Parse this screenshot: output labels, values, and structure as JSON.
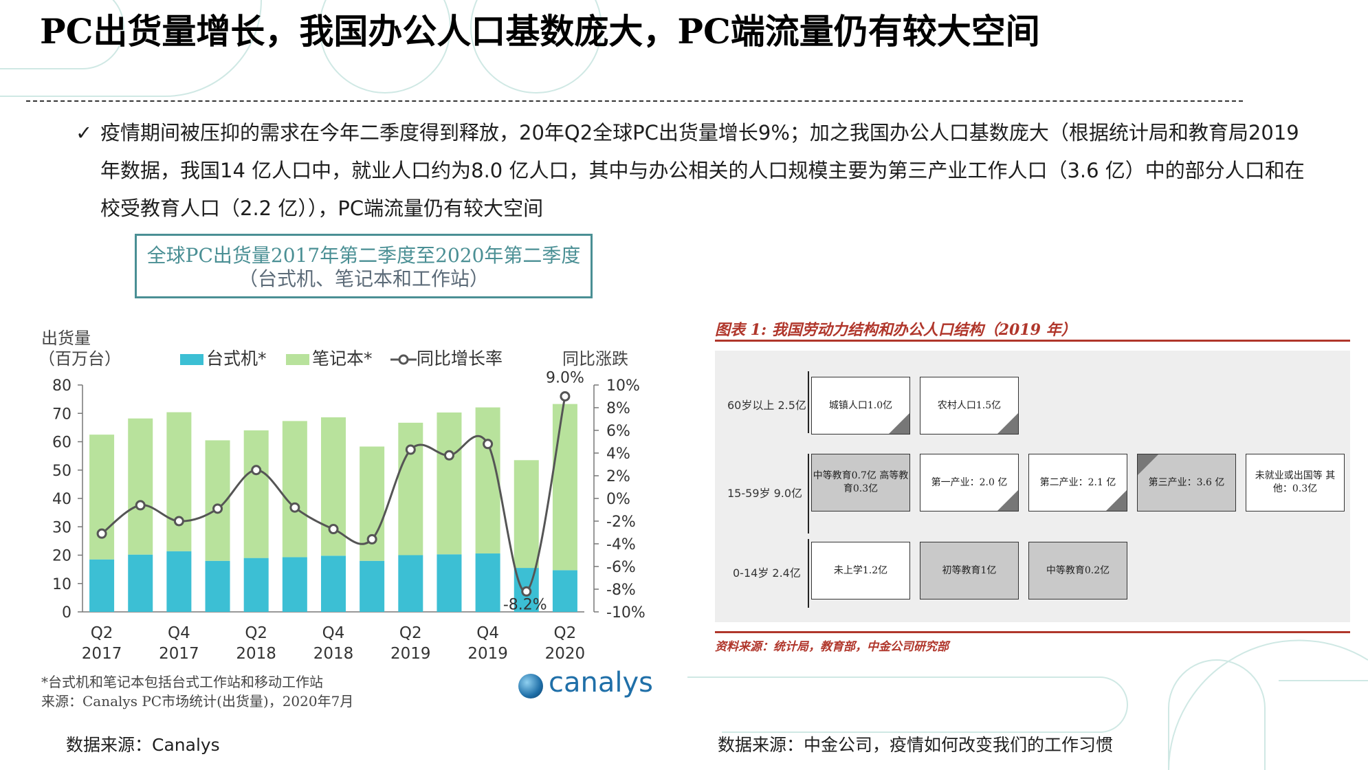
{
  "slide": {
    "title": "PC出货量增长，我国办公人口基数庞大，PC端流量仍有较大空间",
    "check_glyph": "✓",
    "bullet": "疫情期间被压抑的需求在今年二季度得到释放，20年Q2全球PC出货量增长9%；加之我国办公人口基数庞大（根据统计局和教育局2019 年数据，我国14 亿人口中，就业人口约为8.0 亿人口，其中与办公相关的人口规模主要为第三产业工作人口（3.6 亿）中的部分人口和在校受教育人口（2.2 亿）），PC端流量仍有较大空间",
    "left_source": "数据来源：Canalys",
    "right_source": "数据来源：中金公司，疫情如何改变我们的工作习惯"
  },
  "chart_data": {
    "type": "bar",
    "stacked": true,
    "title": "全球PC出货量2017年第二季度至2020年第二季度",
    "subtitle": "（台式机、笔记本和工作站）",
    "ylabel_line1": "出货量",
    "ylabel_line2": "（百万台）",
    "y2label": "同比涨跌",
    "ylim": [
      0,
      80
    ],
    "yticks": [
      "0",
      "10",
      "20",
      "30",
      "40",
      "50",
      "60",
      "70",
      "80"
    ],
    "y2lim": [
      -10,
      10
    ],
    "y2ticks": [
      "-10%",
      "-8%",
      "-6%",
      "-4%",
      "-2%",
      "0%",
      "2%",
      "4%",
      "6%",
      "8%",
      "10%"
    ],
    "categories": [
      "Q2 2017",
      "Q3 2017",
      "Q4 2017",
      "Q1 2018",
      "Q2 2018",
      "Q3 2018",
      "Q4 2018",
      "Q1 2019",
      "Q2 2019",
      "Q3 2019",
      "Q4 2019",
      "Q1 2020",
      "Q2 2020"
    ],
    "tick_labels": [
      {
        "q": "Q2",
        "y": "2017"
      },
      {
        "q": "Q4",
        "y": "2017"
      },
      {
        "q": "Q2",
        "y": "2018"
      },
      {
        "q": "Q4",
        "y": "2018"
      },
      {
        "q": "Q2",
        "y": "2019"
      },
      {
        "q": "Q4",
        "y": "2019"
      },
      {
        "q": "Q2",
        "y": "2020"
      }
    ],
    "series": [
      {
        "name": "台式机*",
        "color": "#3cbfd4",
        "values": [
          18.5,
          20.2,
          21.4,
          18.0,
          19.0,
          19.3,
          19.8,
          18.0,
          20.0,
          20.3,
          20.6,
          15.5,
          14.7
        ]
      },
      {
        "name": "笔记本*",
        "color": "#b8e29c",
        "values": [
          44.0,
          48.0,
          49.0,
          42.5,
          45.0,
          48.0,
          48.8,
          40.3,
          46.7,
          50.0,
          51.5,
          38.0,
          58.6
        ]
      },
      {
        "name": "同比增长率",
        "axis": "right",
        "color": "#555555",
        "values": [
          -3.1,
          -0.6,
          -2.0,
          -0.9,
          2.5,
          -0.8,
          -2.7,
          -3.6,
          4.3,
          3.8,
          4.8,
          -8.2,
          9.0
        ]
      }
    ],
    "annotations": [
      "9.0%",
      "-8.2%"
    ],
    "notes": [
      "*台式机和笔记本包括台式工作站和移动工作站",
      "来源：Canalys PC市场统计(出货量)，2020年7月"
    ],
    "brand": "canalys"
  },
  "figure": {
    "title": "图表 1:  我国劳动力结构和办公人口结构（2019 年）",
    "source": "资料来源：统计局，教育部，中金公司研究部",
    "rows": [
      {
        "label": "60岁以上 2.5亿",
        "boxes": [
          {
            "text": "城镇人口1.0亿",
            "style": "white",
            "fold": "br"
          },
          {
            "text": "农村人口1.5亿",
            "style": "white",
            "fold": "br"
          }
        ]
      },
      {
        "label": "15-59岁 9.0亿",
        "boxes": [
          {
            "text": "中等教育0.7亿 高等教育0.3亿",
            "style": "gray",
            "fold": "none"
          },
          {
            "text": "第一产业：2.0 亿",
            "style": "white",
            "fold": "br"
          },
          {
            "text": "第二产业：2.1 亿",
            "style": "white",
            "fold": "br"
          },
          {
            "text": "第三产业：3.6 亿",
            "style": "gray",
            "fold": "tl"
          },
          {
            "text": "未就业或出国等 其他：0.3亿",
            "style": "white",
            "fold": "none"
          }
        ]
      },
      {
        "label": "0-14岁 2.4亿",
        "boxes": [
          {
            "text": "未上学1.2亿",
            "style": "white",
            "fold": "none"
          },
          {
            "text": "初等教育1亿",
            "style": "gray",
            "fold": "none"
          },
          {
            "text": "中等教育0.2亿",
            "style": "gray",
            "fold": "none"
          }
        ]
      }
    ]
  }
}
